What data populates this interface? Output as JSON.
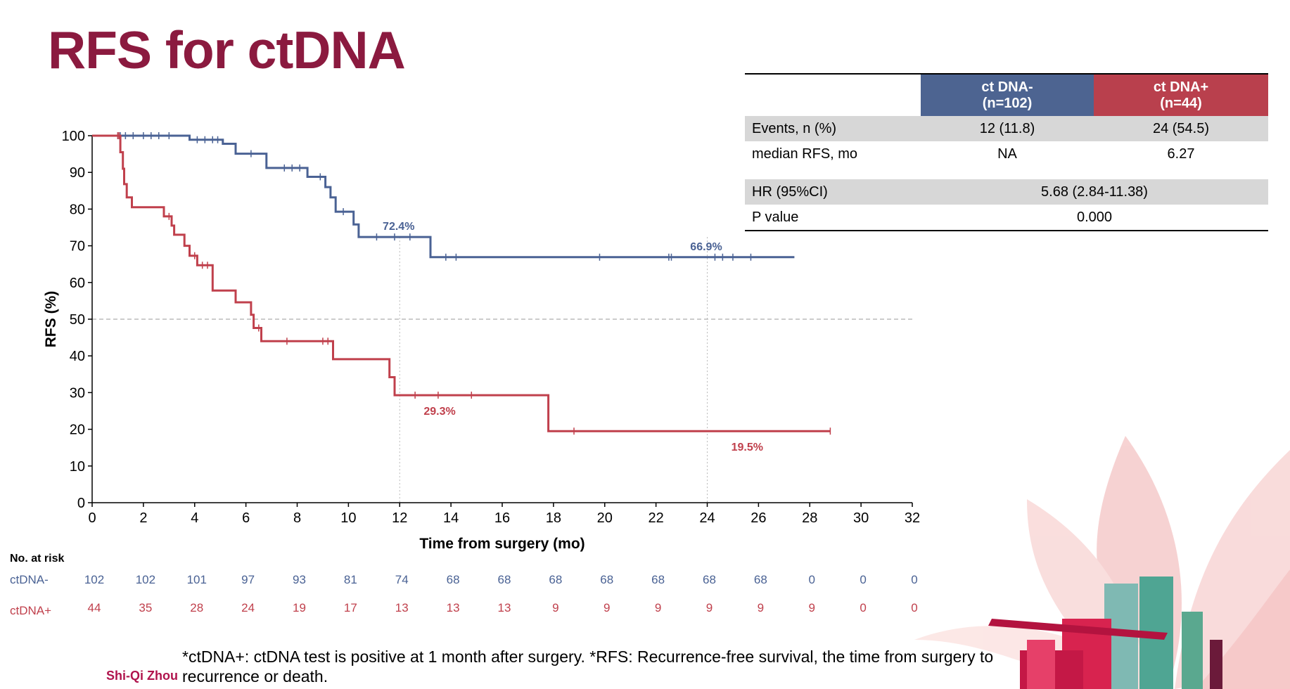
{
  "slide": {
    "title": "RFS for ctDNA",
    "footnote": "*ctDNA+: ctDNA test is positive at 1 month after surgery. *RFS: Recurrence-free survival, the time from surgery to recurrence or death.",
    "author": "Shi-Qi Zhou"
  },
  "chart_data": {
    "type": "line",
    "xlabel": "Time from surgery (mo)",
    "ylabel": "RFS (%)",
    "xlim": [
      0,
      32
    ],
    "ylim": [
      0,
      100
    ],
    "xticks": [
      0,
      2,
      4,
      6,
      8,
      10,
      12,
      14,
      16,
      18,
      20,
      22,
      24,
      26,
      28,
      30,
      32
    ],
    "yticks": [
      0,
      10,
      20,
      30,
      40,
      50,
      60,
      70,
      80,
      90,
      100
    ],
    "reference_line_y": 50,
    "reference_lines_x": [
      12,
      24
    ],
    "colors": {
      "ctdna_neg": "#4a6294",
      "ctdna_pos": "#c0404c"
    },
    "series": [
      {
        "name": "ctDNA-",
        "color": "#4a6294",
        "points": [
          [
            0,
            100
          ],
          [
            3.8,
            100
          ],
          [
            3.8,
            98.9
          ],
          [
            5.1,
            98.9
          ],
          [
            5.1,
            97.8
          ],
          [
            5.6,
            97.8
          ],
          [
            5.6,
            95.1
          ],
          [
            6.8,
            95.1
          ],
          [
            6.8,
            91.2
          ],
          [
            8.4,
            91.2
          ],
          [
            8.4,
            88.8
          ],
          [
            9.1,
            88.8
          ],
          [
            9.1,
            86
          ],
          [
            9.3,
            86
          ],
          [
            9.3,
            83.2
          ],
          [
            9.5,
            83.2
          ],
          [
            9.5,
            79.3
          ],
          [
            10.2,
            79.3
          ],
          [
            10.2,
            75.8
          ],
          [
            10.4,
            75.8
          ],
          [
            10.4,
            72.4
          ],
          [
            13.2,
            72.4
          ],
          [
            13.2,
            66.9
          ],
          [
            27.4,
            66.9
          ]
        ],
        "censors": [
          [
            1,
            100
          ],
          [
            1.1,
            100
          ],
          [
            1.3,
            100
          ],
          [
            1.6,
            100
          ],
          [
            2,
            100
          ],
          [
            2.3,
            100
          ],
          [
            2.6,
            100
          ],
          [
            3,
            100
          ],
          [
            4.1,
            98.9
          ],
          [
            4.4,
            98.9
          ],
          [
            4.7,
            98.9
          ],
          [
            4.9,
            98.9
          ],
          [
            6.2,
            95.1
          ],
          [
            7.5,
            91.2
          ],
          [
            7.8,
            91.2
          ],
          [
            8.1,
            91.2
          ],
          [
            8.9,
            88.8
          ],
          [
            9.8,
            79.3
          ],
          [
            11.1,
            72.4
          ],
          [
            11.8,
            72.4
          ],
          [
            12.4,
            72.4
          ],
          [
            13.8,
            66.9
          ],
          [
            14.2,
            66.9
          ],
          [
            19.8,
            66.9
          ],
          [
            22.5,
            66.9
          ],
          [
            22.6,
            66.9
          ],
          [
            24.3,
            66.9
          ],
          [
            24.6,
            66.9
          ],
          [
            25,
            66.9
          ],
          [
            25.7,
            66.9
          ]
        ],
        "labels": [
          {
            "x": 11.3,
            "y": 72.4,
            "text": "72.4%"
          },
          {
            "x": 23.3,
            "y": 66.9,
            "text": "66.9%"
          }
        ]
      },
      {
        "name": "ctDNA+",
        "color": "#c0404c",
        "points": [
          [
            0,
            100
          ],
          [
            1.1,
            100
          ],
          [
            1.1,
            95.5
          ],
          [
            1.2,
            95.5
          ],
          [
            1.2,
            91
          ],
          [
            1.25,
            91
          ],
          [
            1.25,
            86.8
          ],
          [
            1.35,
            86.8
          ],
          [
            1.35,
            83.2
          ],
          [
            1.55,
            83.2
          ],
          [
            1.55,
            80.5
          ],
          [
            2.8,
            80.5
          ],
          [
            2.8,
            78
          ],
          [
            3.1,
            78
          ],
          [
            3.1,
            75.5
          ],
          [
            3.2,
            75.5
          ],
          [
            3.2,
            73
          ],
          [
            3.6,
            73
          ],
          [
            3.6,
            70
          ],
          [
            3.8,
            70
          ],
          [
            3.8,
            67.3
          ],
          [
            4.1,
            67.3
          ],
          [
            4.1,
            64.7
          ],
          [
            4.7,
            64.7
          ],
          [
            4.7,
            57.8
          ],
          [
            5.6,
            57.8
          ],
          [
            5.6,
            54.6
          ],
          [
            6.2,
            54.6
          ],
          [
            6.2,
            51.2
          ],
          [
            6.3,
            51.2
          ],
          [
            6.3,
            47.6
          ],
          [
            6.6,
            47.6
          ],
          [
            6.6,
            44
          ],
          [
            9.4,
            44
          ],
          [
            9.4,
            39.1
          ],
          [
            11.6,
            39.1
          ],
          [
            11.6,
            34.2
          ],
          [
            11.8,
            34.2
          ],
          [
            11.8,
            29.3
          ],
          [
            17.8,
            29.3
          ],
          [
            17.8,
            19.5
          ],
          [
            28.8,
            19.5
          ]
        ],
        "censors": [
          [
            1,
            100
          ],
          [
            1.05,
            100
          ],
          [
            3,
            78
          ],
          [
            4,
            67.3
          ],
          [
            4.3,
            64.7
          ],
          [
            4.5,
            64.7
          ],
          [
            6.5,
            47.6
          ],
          [
            7.6,
            44
          ],
          [
            9,
            44
          ],
          [
            9.2,
            44
          ],
          [
            12.6,
            29.3
          ],
          [
            13.5,
            29.3
          ],
          [
            14.8,
            29.3
          ],
          [
            18.8,
            19.5
          ],
          [
            28.8,
            19.5
          ]
        ],
        "labels": [
          {
            "x": 12.9,
            "y": 29.3,
            "text": "29.3%"
          },
          {
            "x": 24.9,
            "y": 19.5,
            "text": "19.5%"
          }
        ]
      }
    ],
    "risk_table": {
      "title": "No. at risk",
      "times": [
        0,
        2,
        4,
        6,
        8,
        10,
        12,
        14,
        16,
        18,
        20,
        22,
        24,
        26,
        28,
        30,
        32
      ],
      "rows": [
        {
          "name": "ctDNA-",
          "color": "#4a6294",
          "values": [
            102,
            102,
            101,
            97,
            93,
            81,
            74,
            68,
            68,
            68,
            68,
            68,
            68,
            68,
            0,
            0,
            0
          ]
        },
        {
          "name": "ctDNA+",
          "color": "#c0404c",
          "values": [
            44,
            35,
            28,
            24,
            19,
            17,
            13,
            13,
            13,
            9,
            9,
            9,
            9,
            9,
            9,
            0,
            0
          ]
        }
      ]
    }
  },
  "summary_table": {
    "head_neg": [
      "ct DNA-",
      "(n=102)"
    ],
    "head_pos": [
      "ct DNA+",
      "(n=44)"
    ],
    "header_colors": {
      "neg": "#4d6491",
      "pos": "#b9404d"
    },
    "events_label": "Events, n (%)",
    "events_neg": "12 (11.8)",
    "events_pos": "24 (54.5)",
    "median_label": "median RFS, mo",
    "median_neg": "NA",
    "median_pos": "6.27",
    "hr_label": "HR (95%CI)",
    "hr_value": "5.68 (2.84-11.38)",
    "p_label": "P value",
    "p_value": "0.000"
  }
}
